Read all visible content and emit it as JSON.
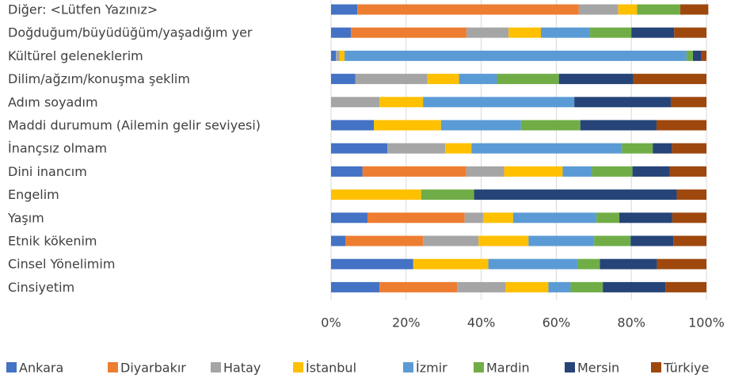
{
  "chart_data": {
    "type": "stacked-bar-horizontal",
    "categories": [
      "Diğer: <Lütfen Yazınız>",
      "Doğduğum/büyüdüğüm/yaşadığım yer",
      "Kültürel geleneklerim",
      "Dilim/ağzım/konuşma şeklim",
      "Adım soyadım",
      "Maddi durumum (Ailemin gelir seviyesi)",
      "İnançsız olmam",
      "Dini inancım",
      "Engelim",
      "Yaşım",
      "Etnik kökenim",
      "Cinsel Yönelimim",
      "Cinsiyetim"
    ],
    "series": [
      {
        "name": "Ankara",
        "color": "#4472c4",
        "values": [
          7,
          5.3,
          1.3,
          6.5,
          0,
          11.4,
          15,
          8.4,
          0,
          9.7,
          3.8,
          21.9,
          12.9
        ]
      },
      {
        "name": "Diyarbakır",
        "color": "#ed7d31",
        "values": [
          59,
          30.8,
          0,
          0,
          0,
          0,
          0,
          27.6,
          0,
          25.9,
          20.7,
          0,
          20.7
        ]
      },
      {
        "name": "Hatay",
        "color": "#a5a5a5",
        "values": [
          10.5,
          11.2,
          1,
          19.2,
          12.9,
          0,
          15.4,
          10.1,
          0,
          4.9,
          14.8,
          0,
          12.9
        ]
      },
      {
        "name": "İstanbul",
        "color": "#ffc000",
        "values": [
          5,
          8.6,
          1.3,
          8.4,
          11.6,
          17.9,
          7,
          15.6,
          24,
          8,
          13.3,
          20,
          11.4
        ]
      },
      {
        "name": "İzmir",
        "color": "#5b9bd5",
        "values": [
          0,
          13.1,
          91.1,
          10.1,
          40.3,
          21.3,
          40.1,
          7.8,
          0,
          22.2,
          17.5,
          23.8,
          5.9
        ]
      },
      {
        "name": "Mardin",
        "color": "#70ad47",
        "values": [
          11.5,
          11,
          1.7,
          16.5,
          0,
          15.8,
          8.2,
          10.8,
          14.1,
          6.1,
          9.7,
          5.9,
          8.6
        ]
      },
      {
        "name": "Mersin",
        "color": "#264478",
        "values": [
          0,
          11.4,
          2.3,
          19.8,
          25.7,
          20.3,
          5.1,
          9.9,
          54,
          14.1,
          11.4,
          15.2,
          16.7
        ]
      },
      {
        "name": "Türkiye",
        "color": "#9e480e",
        "values": [
          7.5,
          8.6,
          1.3,
          19.5,
          9.5,
          13.3,
          9.2,
          9.8,
          7.9,
          9.1,
          8.8,
          13.2,
          10.9
        ]
      }
    ],
    "xlim": [
      0,
      100
    ],
    "xticks": [
      {
        "value": 0,
        "label": "0%"
      },
      {
        "value": 20,
        "label": "20%"
      },
      {
        "value": 40,
        "label": "40%"
      },
      {
        "value": 60,
        "label": "60%"
      },
      {
        "value": 80,
        "label": "80%"
      },
      {
        "value": 100,
        "label": "100%"
      }
    ],
    "grid": true,
    "legend": "bottom"
  }
}
